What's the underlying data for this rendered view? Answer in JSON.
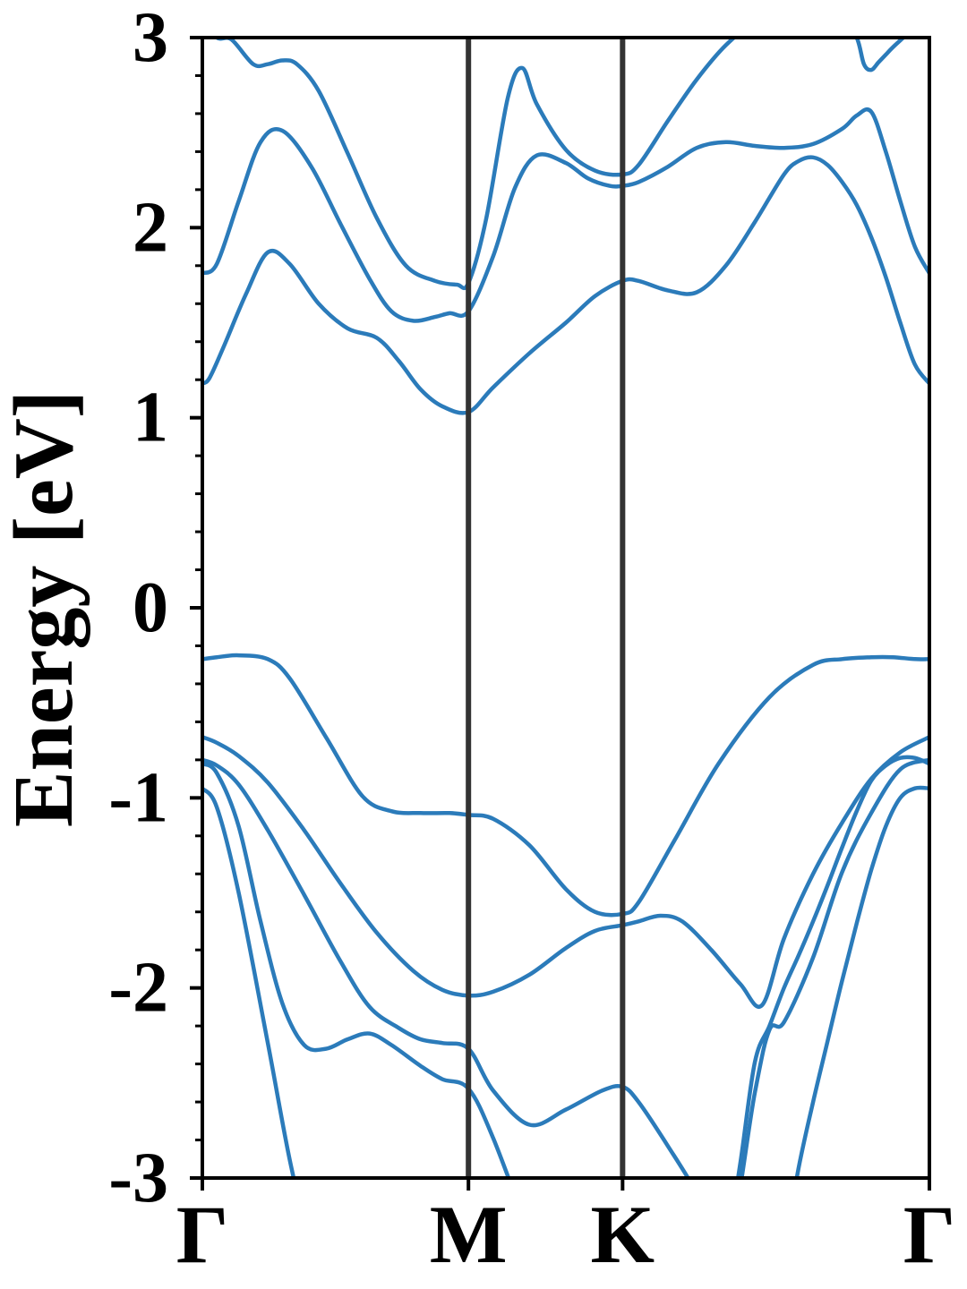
{
  "chart_data": {
    "type": "line",
    "title": "",
    "xlabel": "",
    "ylabel": "Energy [eV]",
    "ylim": [
      -3,
      3
    ],
    "xlim": [
      0,
      1
    ],
    "yticks": [
      {
        "value": 3,
        "label": "3"
      },
      {
        "value": 2,
        "label": "2"
      },
      {
        "value": 1,
        "label": "1"
      },
      {
        "value": 0,
        "label": "0"
      },
      {
        "value": -1,
        "label": "-1"
      },
      {
        "value": -2,
        "label": "-2"
      },
      {
        "value": -3,
        "label": "-3"
      }
    ],
    "minor_ytick_step": 0.2,
    "high_symmetry_points": [
      {
        "label": "Γ",
        "x": 0.0
      },
      {
        "label": "M",
        "x": 0.366
      },
      {
        "label": "K",
        "x": 0.578
      },
      {
        "label": "Γ",
        "x": 1.0
      }
    ],
    "grid": false,
    "line_color": "#2b7bba",
    "divider_color": "#333333",
    "series": [
      {
        "x": [
          0,
          0.02,
          0.05,
          0.09,
          0.12,
          0.17,
          0.22,
          0.26,
          0.3,
          0.34,
          0.366,
          0.4,
          0.45,
          0.5,
          0.54,
          0.578,
          0.6,
          0.65,
          0.71,
          0.78,
          0.84,
          0.88,
          0.92,
          0.95,
          0.98,
          1.0
        ],
        "y": [
          -0.27,
          -0.26,
          -0.25,
          -0.27,
          -0.37,
          -0.68,
          -0.99,
          -1.07,
          -1.08,
          -1.08,
          -1.09,
          -1.11,
          -1.25,
          -1.48,
          -1.6,
          -1.61,
          -1.55,
          -1.22,
          -0.82,
          -0.47,
          -0.3,
          -0.27,
          -0.26,
          -0.26,
          -0.27,
          -0.27
        ]
      },
      {
        "x": [
          0,
          0.02,
          0.05,
          0.09,
          0.14,
          0.19,
          0.24,
          0.29,
          0.33,
          0.366,
          0.4,
          0.45,
          0.5,
          0.54,
          0.578,
          0.6,
          0.63,
          0.66,
          0.7,
          0.74,
          0.77,
          0.8,
          0.84,
          0.88,
          0.92,
          0.96,
          1.0
        ],
        "y": [
          -0.68,
          -0.71,
          -0.78,
          -0.92,
          -1.17,
          -1.45,
          -1.71,
          -1.91,
          -2.01,
          -2.04,
          -2.02,
          -1.93,
          -1.79,
          -1.7,
          -1.67,
          -1.65,
          -1.62,
          -1.65,
          -1.8,
          -1.98,
          -2.09,
          -1.74,
          -1.4,
          -1.13,
          -0.9,
          -0.76,
          -0.68
        ]
      },
      {
        "x": [
          0,
          0.02,
          0.05,
          0.09,
          0.14,
          0.19,
          0.23,
          0.27,
          0.3,
          0.33,
          0.366,
          0.4,
          0.45,
          0.5,
          0.55,
          0.578,
          0.6,
          0.64,
          0.68,
          0.72,
          0.76,
          0.78,
          0.8,
          0.84,
          0.88,
          0.92,
          0.96,
          1.0
        ],
        "y": [
          -0.8,
          -0.83,
          -0.93,
          -1.17,
          -1.51,
          -1.86,
          -2.1,
          -2.21,
          -2.27,
          -2.29,
          -2.32,
          -2.54,
          -2.72,
          -2.64,
          -2.54,
          -2.52,
          -2.6,
          -2.83,
          -3.08,
          -3.4,
          -2.55,
          -2.22,
          -2.18,
          -1.84,
          -1.39,
          -1.08,
          -0.85,
          -0.8
        ]
      },
      {
        "x": [
          0,
          0.02,
          0.05,
          0.08,
          0.11,
          0.14,
          0.17,
          0.2,
          0.23,
          0.26,
          0.3,
          0.33,
          0.366,
          0.4,
          0.45
        ],
        "y": [
          -0.82,
          -0.87,
          -1.15,
          -1.65,
          -2.08,
          -2.3,
          -2.32,
          -2.27,
          -2.24,
          -2.3,
          -2.41,
          -2.48,
          -2.53,
          -2.79,
          -3.3
        ]
      },
      {
        "x": [
          0,
          0.02,
          0.05,
          0.09,
          0.12,
          0.15,
          0.17
        ],
        "y": [
          -0.95,
          -1.05,
          -1.5,
          -2.29,
          -2.9,
          -3.4,
          -3.7
        ]
      },
      {
        "x": [
          0.72,
          0.74,
          0.76,
          0.78,
          0.8,
          0.82,
          0.84,
          0.86,
          0.88,
          0.9,
          0.92,
          0.94,
          0.96,
          0.98,
          1.0
        ],
        "y": [
          -3.4,
          -2.92,
          -2.39,
          -2.2,
          -2.0,
          -1.83,
          -1.65,
          -1.46,
          -1.26,
          -1.07,
          -0.91,
          -0.83,
          -0.79,
          -0.79,
          -0.82
        ]
      },
      {
        "x": [
          0.8,
          0.82,
          0.84,
          0.86,
          0.88,
          0.9,
          0.92,
          0.94,
          0.96,
          0.98,
          1.0
        ],
        "y": [
          -3.4,
          -2.95,
          -2.6,
          -2.28,
          -1.96,
          -1.66,
          -1.38,
          -1.15,
          -1.0,
          -0.95,
          -0.95
        ]
      },
      {
        "x": [
          0,
          0.01,
          0.03,
          0.06,
          0.09,
          0.12,
          0.16,
          0.2,
          0.24,
          0.27,
          0.3,
          0.33,
          0.366,
          0.4,
          0.45,
          0.5,
          0.54,
          0.578,
          0.6,
          0.64,
          0.68,
          0.72,
          0.76,
          0.8,
          0.82,
          0.84,
          0.86,
          0.88,
          0.9,
          0.92,
          0.94,
          0.96,
          0.98,
          1.0
        ],
        "y": [
          1.18,
          1.21,
          1.38,
          1.65,
          1.87,
          1.81,
          1.6,
          1.47,
          1.42,
          1.3,
          1.15,
          1.06,
          1.03,
          1.16,
          1.34,
          1.5,
          1.64,
          1.72,
          1.72,
          1.67,
          1.66,
          1.8,
          2.03,
          2.28,
          2.35,
          2.37,
          2.33,
          2.24,
          2.12,
          1.95,
          1.74,
          1.5,
          1.28,
          1.18
        ]
      },
      {
        "x": [
          0,
          0.02,
          0.05,
          0.08,
          0.11,
          0.15,
          0.19,
          0.23,
          0.26,
          0.29,
          0.32,
          0.34,
          0.366,
          0.4,
          0.43,
          0.46,
          0.5,
          0.53,
          0.56,
          0.578,
          0.6,
          0.64,
          0.68,
          0.72,
          0.76,
          0.8,
          0.84,
          0.88,
          0.9,
          0.92,
          0.94,
          0.96,
          0.98,
          1.0
        ],
        "y": [
          1.76,
          1.81,
          2.14,
          2.45,
          2.51,
          2.32,
          2.02,
          1.73,
          1.56,
          1.51,
          1.53,
          1.55,
          1.56,
          1.85,
          2.21,
          2.38,
          2.34,
          2.26,
          2.22,
          2.22,
          2.24,
          2.32,
          2.42,
          2.45,
          2.43,
          2.42,
          2.44,
          2.52,
          2.59,
          2.61,
          2.4,
          2.14,
          1.9,
          1.76
        ]
      },
      {
        "x": [
          0,
          0.02,
          0.04,
          0.07,
          0.09,
          0.11,
          0.13,
          0.16,
          0.2,
          0.24,
          0.28,
          0.32,
          0.35,
          0.366,
          0.39,
          0.42,
          0.44,
          0.46,
          0.5,
          0.54,
          0.578,
          0.6,
          0.64,
          0.68,
          0.72,
          0.76,
          0.8,
          0.84,
          0.86
        ],
        "y": [
          3.1,
          3.0,
          2.99,
          2.86,
          2.86,
          2.88,
          2.86,
          2.72,
          2.39,
          2.05,
          1.8,
          1.72,
          1.7,
          1.71,
          2.04,
          2.68,
          2.84,
          2.65,
          2.41,
          2.3,
          2.28,
          2.33,
          2.56,
          2.78,
          2.96,
          3.08,
          3.12,
          3.12,
          3.1
        ]
      },
      {
        "x": [
          0.88,
          0.9,
          0.91,
          0.92,
          0.93,
          0.94,
          0.95,
          0.97,
          1.0
        ],
        "y": [
          3.1,
          3.0,
          2.86,
          2.83,
          2.87,
          2.91,
          2.95,
          3.02,
          3.12
        ]
      }
    ]
  }
}
